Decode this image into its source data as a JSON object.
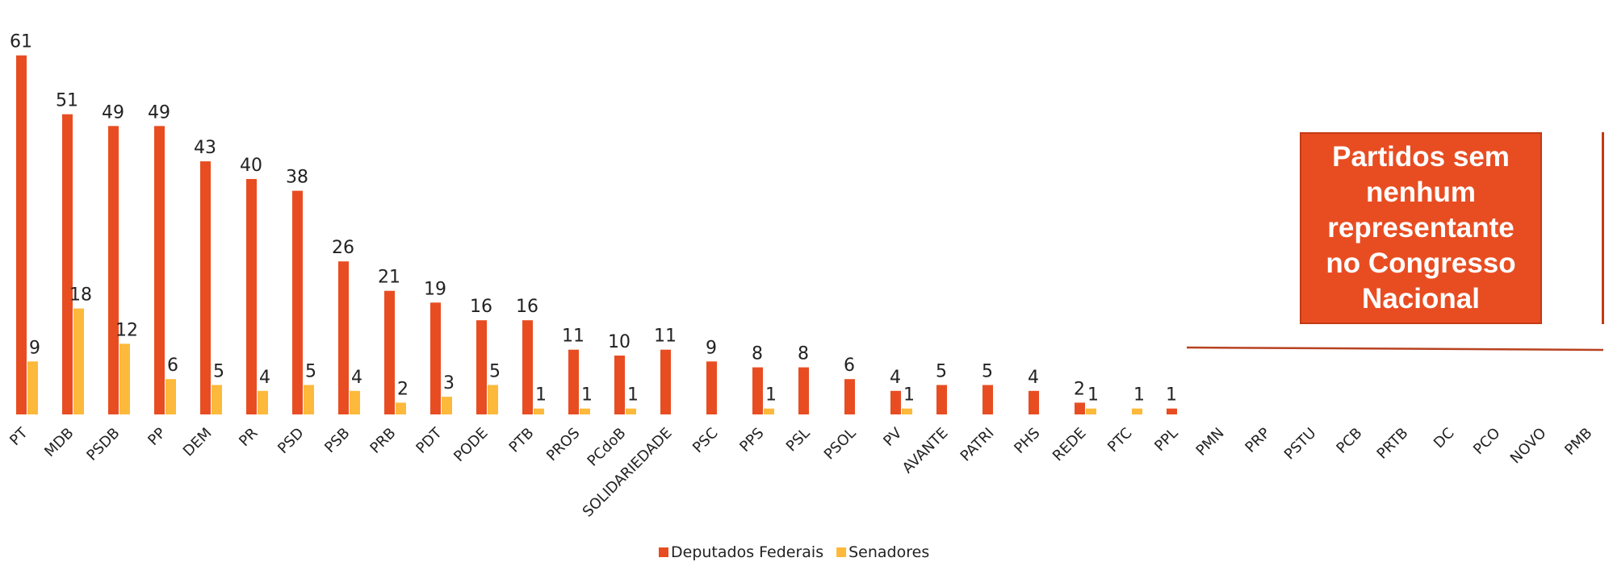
{
  "chart_data": {
    "type": "bar",
    "categories": [
      "PT",
      "MDB",
      "PSDB",
      "PP",
      "DEM",
      "PR",
      "PSD",
      "PSB",
      "PRB",
      "PDT",
      "PODE",
      "PTB",
      "PROS",
      "PCdoB",
      "SOLIDARIEDADE",
      "PSC",
      "PPS",
      "PSL",
      "PSOL",
      "PV",
      "AVANTE",
      "PATRI",
      "PHS",
      "REDE",
      "PTC",
      "PPL",
      "PMN",
      "PRP",
      "PSTU",
      "PCB",
      "PRTB",
      "DC",
      "PCO",
      "NOVO",
      "PMB"
    ],
    "series": [
      {
        "name": "Deputados Federais",
        "color": "#E84D22",
        "values": [
          61,
          51,
          49,
          49,
          43,
          40,
          38,
          26,
          21,
          19,
          16,
          16,
          11,
          10,
          11,
          9,
          8,
          8,
          6,
          4,
          5,
          5,
          4,
          2,
          0,
          1,
          0,
          0,
          0,
          0,
          0,
          0,
          0,
          0,
          0
        ]
      },
      {
        "name": "Senadores",
        "color": "#FDB93B",
        "values": [
          9,
          18,
          12,
          6,
          5,
          4,
          5,
          4,
          2,
          3,
          5,
          1,
          1,
          1,
          0,
          0,
          1,
          0,
          0,
          1,
          0,
          0,
          0,
          1,
          1,
          0,
          0,
          0,
          0,
          0,
          0,
          0,
          0,
          0,
          0
        ]
      }
    ],
    "data_labels": {
      "Deputados Federais": [
        "61",
        "51",
        "49",
        "49",
        "43",
        "40",
        "38",
        "26",
        "21",
        "19",
        "16",
        "16",
        "11",
        "10",
        "11",
        "9",
        "8",
        "8",
        "6",
        "4",
        "5",
        "5",
        "4",
        "2",
        "",
        "1",
        "",
        "",
        "",
        "",
        "",
        "",
        "",
        "",
        ""
      ],
      "Senadores": [
        "9",
        "18",
        "12",
        "6",
        "5",
        "4",
        "5",
        "4",
        "2",
        "3",
        "5",
        "1",
        "1",
        "1",
        "",
        "",
        "1",
        "",
        "",
        "1",
        "",
        "",
        "",
        "1",
        "1",
        "",
        "",
        "",
        "",
        "",
        "",
        "",
        "",
        "",
        ""
      ]
    },
    "ylim": [
      0,
      64
    ],
    "grid": false,
    "legend_position": "bottom-center"
  },
  "callout": {
    "text": "Partidos sem nenhum representante no Congresso Nacional",
    "fill": "#E84D22",
    "text_color": "#FFFFFF"
  }
}
